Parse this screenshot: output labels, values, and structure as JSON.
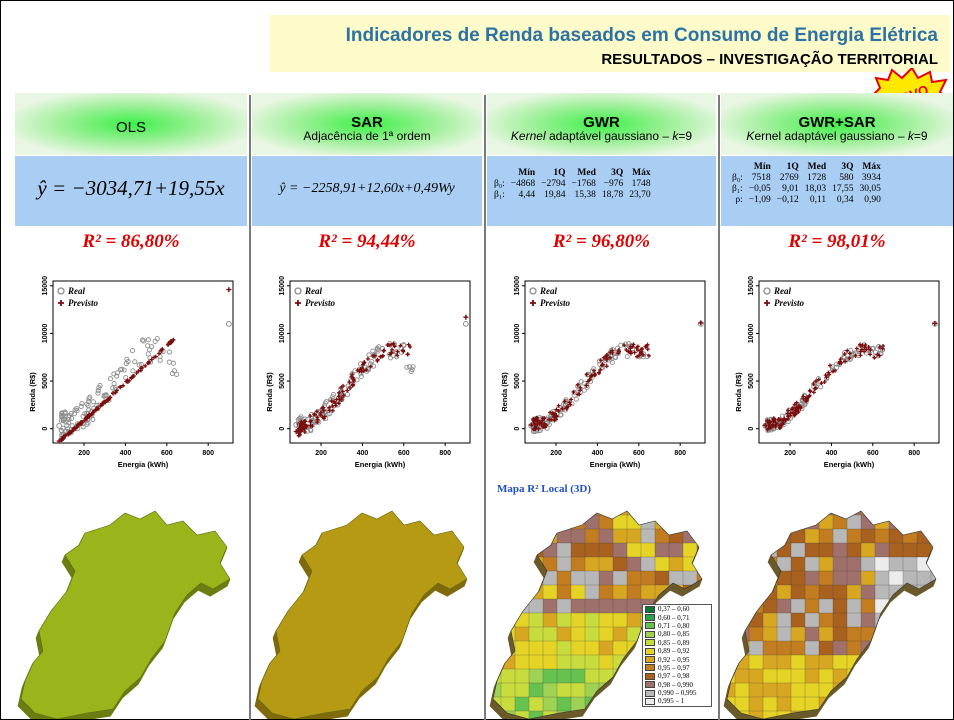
{
  "header": {
    "title": "Indicadores de Renda baseados em Consumo de Energia Elétrica",
    "subtitle": "RESULTADOS – INVESTIGAÇÃO TERRITORIAL",
    "badge": "NOVO"
  },
  "models": [
    {
      "name": "OLS",
      "subtitle": "",
      "equation": "ŷ = −3034,71+19,55x",
      "r2": "R² = 86,80%",
      "map_color": "#99b51b",
      "map_side": "#6c7d12"
    },
    {
      "name": "SAR",
      "subtitle": "Adjacência de 1ª ordem",
      "equation": "ŷ = −2258,91+12,60x+0,49Wy",
      "r2": "R² = 94,44%",
      "map_color": "#b79a14",
      "map_side": "#7f6a0d"
    },
    {
      "name": "GWR",
      "subtitle_html_parts": [
        "Kernel",
        " adaptável gaussiano – ",
        "k",
        "=9"
      ],
      "r2": "R² = 96,80%",
      "map_title": "Mapa R² Local (3D)"
    },
    {
      "name": "GWR+SAR",
      "subtitle_html_parts": [
        "K",
        "ernel adaptável gaussiano – ",
        "k",
        "=9"
      ],
      "r2": "R² = 98,01%"
    }
  ],
  "gwr_table": {
    "headers": [
      "",
      "Mín",
      "1Q",
      "Med",
      "3Q",
      "Máx"
    ],
    "rows": [
      [
        "β₀:",
        "−4868",
        "−2794",
        "−1768",
        "−976",
        "1748"
      ],
      [
        "β₁:",
        "4,44",
        "19,84",
        "15,38",
        "18,78",
        "23,70"
      ]
    ]
  },
  "gwrsar_table": {
    "headers": [
      "",
      "Mín",
      "1Q",
      "Med",
      "3Q",
      "Máx"
    ],
    "rows": [
      [
        "β₀:",
        "7518",
        "2769",
        "1728",
        "580",
        "3934"
      ],
      [
        "β₁:",
        "−0,05",
        "9,01",
        "18,03",
        "17,55",
        "30,05"
      ],
      [
        "ρ:",
        "−1,09",
        "−0,12",
        "0,11",
        "0,34",
        "0,90"
      ]
    ]
  },
  "plot": {
    "xlabel": "Energia (kWh)",
    "ylabel": "Renda (R$)",
    "legend_real": "Real",
    "legend_pred": "Previsto",
    "xticks": [
      "200",
      "400",
      "600",
      "800"
    ],
    "yticks": [
      "0",
      "5000",
      "10000",
      "15000"
    ]
  },
  "chart_data": [
    {
      "type": "scatter",
      "title": "OLS",
      "xlabel": "Energia (kWh)",
      "ylabel": "Renda (R$)",
      "xlim": [
        50,
        920
      ],
      "ylim": [
        -1500,
        15500
      ],
      "series": [
        {
          "name": "Real",
          "x": [
            80,
            150,
            200,
            250,
            300,
            350,
            400,
            450,
            500,
            550,
            600,
            650,
            900
          ],
          "y": [
            300,
            500,
            1500,
            2500,
            3800,
            5000,
            6500,
            7500,
            8200,
            8300,
            8000,
            6000,
            11000
          ]
        },
        {
          "name": "Previsto",
          "x": [
            80,
            150,
            200,
            250,
            300,
            350,
            400,
            450,
            500,
            550,
            600,
            650,
            900
          ],
          "y": [
            -1300,
            -100,
            900,
            1850,
            2800,
            3800,
            4800,
            5750,
            6700,
            7700,
            8700,
            9700,
            14600
          ]
        }
      ]
    },
    {
      "type": "scatter",
      "title": "SAR",
      "xlabel": "Energia (kWh)",
      "ylabel": "Renda (R$)",
      "xlim": [
        50,
        920
      ],
      "ylim": [
        -1500,
        15500
      ],
      "series": [
        {
          "name": "Real",
          "x": [
            80,
            150,
            200,
            250,
            300,
            350,
            400,
            450,
            500,
            550,
            600,
            650,
            900
          ],
          "y": [
            400,
            600,
            1500,
            2500,
            3800,
            5000,
            6300,
            7300,
            8000,
            8200,
            7900,
            6000,
            11000
          ]
        },
        {
          "name": "Previsto",
          "x": [
            80,
            150,
            200,
            250,
            300,
            350,
            400,
            450,
            500,
            550,
            600,
            650,
            900
          ],
          "y": [
            -300,
            700,
            1500,
            2400,
            3700,
            5000,
            6100,
            7200,
            8000,
            8300,
            8100,
            8400,
            11700
          ]
        }
      ]
    },
    {
      "type": "scatter",
      "title": "GWR",
      "xlabel": "Energia (kWh)",
      "ylabel": "Renda (R$)",
      "xlim": [
        50,
        920
      ],
      "ylim": [
        -1500,
        15500
      ],
      "series": [
        {
          "name": "Real",
          "x": [
            80,
            150,
            200,
            250,
            300,
            350,
            400,
            450,
            500,
            550,
            600,
            650,
            900
          ],
          "y": [
            300,
            600,
            1500,
            2500,
            3800,
            5000,
            6300,
            7300,
            8000,
            8300,
            8000,
            8100,
            11000
          ]
        },
        {
          "name": "Previsto",
          "x": [
            80,
            150,
            200,
            250,
            300,
            350,
            400,
            450,
            500,
            550,
            600,
            650,
            900
          ],
          "y": [
            400,
            700,
            1600,
            2600,
            3900,
            5100,
            6200,
            7300,
            7900,
            8400,
            8000,
            8200,
            11100
          ]
        }
      ]
    },
    {
      "type": "scatter",
      "title": "GWR+SAR",
      "xlabel": "Energia (kWh)",
      "ylabel": "Renda (R$)",
      "xlim": [
        50,
        920
      ],
      "ylim": [
        -1500,
        15500
      ],
      "series": [
        {
          "name": "Real",
          "x": [
            80,
            150,
            200,
            250,
            300,
            350,
            400,
            450,
            500,
            550,
            600,
            650,
            900
          ],
          "y": [
            300,
            600,
            1500,
            2500,
            3800,
            5000,
            6300,
            7300,
            8000,
            8300,
            8000,
            8100,
            11000
          ]
        },
        {
          "name": "Previsto",
          "x": [
            80,
            150,
            200,
            250,
            300,
            350,
            400,
            450,
            500,
            550,
            600,
            650,
            900
          ],
          "y": [
            350,
            650,
            1550,
            2550,
            3850,
            5050,
            6250,
            7300,
            8000,
            8350,
            8000,
            8150,
            11050
          ]
        }
      ]
    }
  ],
  "legend_map": [
    {
      "label": "0,37 – 0,60",
      "color": "#0c7a36"
    },
    {
      "label": "0,60 – 0,71",
      "color": "#2ba34b"
    },
    {
      "label": "0,71 – 0,80",
      "color": "#66c14f"
    },
    {
      "label": "0,80 – 0,85",
      "color": "#9fd153"
    },
    {
      "label": "0,85 – 0,89",
      "color": "#c9dc3e"
    },
    {
      "label": "0,89 – 0,92",
      "color": "#e5d325"
    },
    {
      "label": "0,92 – 0,95",
      "color": "#d7a721"
    },
    {
      "label": "0,95 – 0,97",
      "color": "#c17d1f"
    },
    {
      "label": "0,97 – 0,98",
      "color": "#a8611f"
    },
    {
      "label": "0,98 – 0,990",
      "color": "#a0706a"
    },
    {
      "label": "0,990 – 0,995",
      "color": "#b8b8b8"
    },
    {
      "label": "0,995 – 1",
      "color": "#ececec"
    }
  ]
}
